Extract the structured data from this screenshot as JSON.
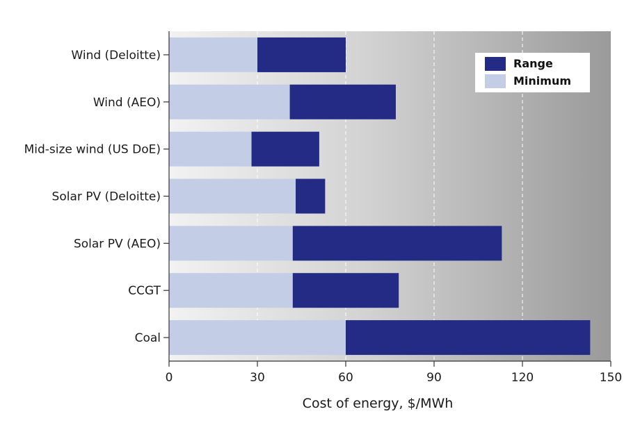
{
  "chart_data": {
    "type": "bar",
    "orientation": "horizontal",
    "stacked": true,
    "categories": [
      "Wind (Deloitte)",
      "Wind (AEO)",
      "Mid-size wind (US DoE)",
      "Solar PV (Deloitte)",
      "Solar PV (AEO)",
      "CCGT",
      "Coal"
    ],
    "series": [
      {
        "name": "Minimum",
        "color": "#c3cee6",
        "values": [
          30,
          41,
          28,
          43,
          42,
          42,
          60
        ]
      },
      {
        "name": "Range",
        "color": "#232b85",
        "values": [
          30,
          36,
          23,
          10,
          71,
          36,
          83
        ]
      }
    ],
    "xlabel": "Cost of energy, $/MWh",
    "ylabel": "",
    "xlim": [
      0,
      150
    ],
    "xticks": [
      "0",
      "30",
      "60",
      "90",
      "120",
      "150"
    ],
    "grid": "vertical dashed",
    "background": "gradient light-to-dark gray",
    "legend": {
      "position": "top-right",
      "order": [
        "Range",
        "Minimum"
      ]
    }
  }
}
